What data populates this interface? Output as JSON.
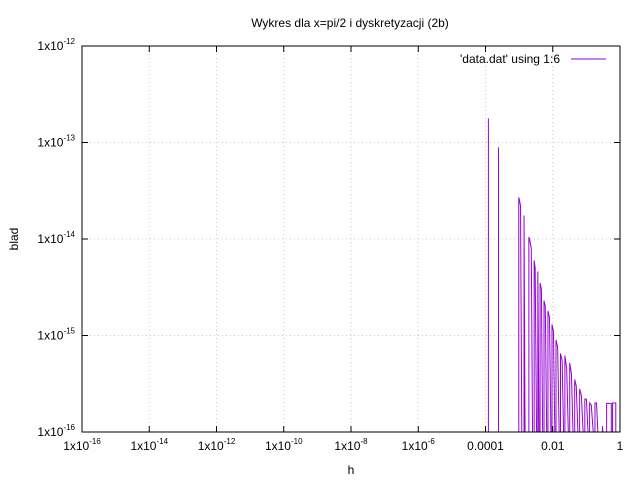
{
  "chart_data": {
    "type": "line",
    "title": "Wykres dla x=pi/2 i dyskretyzacji (2b)",
    "xlabel": "h",
    "ylabel": "blad",
    "xscale": "log",
    "yscale": "log",
    "xlim": [
      1e-16,
      1
    ],
    "ylim": [
      1e-16,
      1e-12
    ],
    "grid": true,
    "legend_position": "top-right",
    "x_ticks": [
      {
        "v": 1e-16,
        "base": "1x10",
        "exp": "-16"
      },
      {
        "v": 1e-14,
        "base": "1x10",
        "exp": "-14"
      },
      {
        "v": 1e-12,
        "base": "1x10",
        "exp": "-12"
      },
      {
        "v": 1e-10,
        "base": "1x10",
        "exp": "-10"
      },
      {
        "v": 1e-08,
        "base": "1x10",
        "exp": "-8"
      },
      {
        "v": 1e-06,
        "base": "1x10",
        "exp": "-6"
      },
      {
        "v": 0.0001,
        "base": "0.0001",
        "exp": ""
      },
      {
        "v": 0.01,
        "base": "0.01",
        "exp": ""
      },
      {
        "v": 1,
        "base": "1",
        "exp": ""
      }
    ],
    "y_ticks": [
      {
        "v": 1e-16,
        "base": "1x10",
        "exp": "-16"
      },
      {
        "v": 1e-15,
        "base": "1x10",
        "exp": "-15"
      },
      {
        "v": 1e-14,
        "base": "1x10",
        "exp": "-14"
      },
      {
        "v": 1e-13,
        "base": "1x10",
        "exp": "-13"
      },
      {
        "v": 1e-12,
        "base": "1x10",
        "exp": "-12"
      }
    ],
    "series": [
      {
        "name": "'data.dat' using 1:6",
        "color": "#9400d3",
        "points": [
          [
            0.000122,
            1e-16
          ],
          [
            0.000122,
            1.78e-13
          ],
          [
            0.000122,
            1e-16
          ],
          [
            0.000244,
            1e-16
          ],
          [
            0.000244,
            8.9e-14
          ],
          [
            0.000244,
            1e-16
          ],
          [
            0.000977,
            1e-16
          ],
          [
            0.000977,
            2.7e-14
          ],
          [
            0.00103,
            2.5e-14
          ],
          [
            0.0011,
            2.2e-14
          ],
          [
            0.0012,
            1e-16
          ],
          [
            0.0014,
            1e-16
          ],
          [
            0.0014,
            1.75e-14
          ],
          [
            0.0015,
            1e-16
          ],
          [
            0.00195,
            1e-16
          ],
          [
            0.00195,
            1.05e-14
          ],
          [
            0.0021,
            9.5e-15
          ],
          [
            0.0023,
            8e-15
          ],
          [
            0.0025,
            1e-16
          ],
          [
            0.0028,
            1e-16
          ],
          [
            0.0028,
            6e-15
          ],
          [
            0.003,
            5e-15
          ],
          [
            0.0033,
            1e-16
          ],
          [
            0.0036,
            1e-16
          ],
          [
            0.0036,
            4.6e-15
          ],
          [
            0.0039,
            1e-16
          ],
          [
            0.0042,
            1e-16
          ],
          [
            0.0042,
            3.5e-15
          ],
          [
            0.0046,
            3e-15
          ],
          [
            0.005,
            1e-16
          ],
          [
            0.0055,
            1e-16
          ],
          [
            0.0055,
            2.3e-15
          ],
          [
            0.006,
            2e-15
          ],
          [
            0.0066,
            1e-16
          ],
          [
            0.0072,
            1e-16
          ],
          [
            0.0072,
            1.8e-15
          ],
          [
            0.008,
            1.55e-15
          ],
          [
            0.0088,
            1e-16
          ],
          [
            0.0095,
            1e-16
          ],
          [
            0.0095,
            1.3e-15
          ],
          [
            0.0105,
            1.1e-15
          ],
          [
            0.0115,
            1e-16
          ],
          [
            0.0125,
            1e-16
          ],
          [
            0.0125,
            9e-16
          ],
          [
            0.014,
            7.5e-16
          ],
          [
            0.0155,
            1e-16
          ],
          [
            0.017,
            1e-16
          ],
          [
            0.017,
            6.5e-16
          ],
          [
            0.019,
            5.5e-16
          ],
          [
            0.021,
            1e-16
          ],
          [
            0.023,
            1e-16
          ],
          [
            0.023,
            6.2e-16
          ],
          [
            0.026,
            4.5e-16
          ],
          [
            0.029,
            1e-16
          ],
          [
            0.032,
            1e-16
          ],
          [
            0.032,
            5.2e-16
          ],
          [
            0.036,
            4e-16
          ],
          [
            0.04,
            1e-16
          ],
          [
            0.045,
            1e-16
          ],
          [
            0.045,
            3.5e-16
          ],
          [
            0.05,
            3e-16
          ],
          [
            0.056,
            1e-16
          ],
          [
            0.063,
            1e-16
          ],
          [
            0.063,
            2.8e-16
          ],
          [
            0.071,
            2.4e-16
          ],
          [
            0.08,
            1e-16
          ],
          [
            0.09,
            1e-16
          ],
          [
            0.09,
            2.2e-16
          ],
          [
            0.1,
            2.2e-16
          ],
          [
            0.112,
            1e-16
          ],
          [
            0.125,
            1e-16
          ],
          [
            0.125,
            2e-16
          ],
          [
            0.14,
            1.9e-16
          ],
          [
            0.16,
            1e-16
          ],
          [
            0.18,
            1e-16
          ],
          [
            0.18,
            2e-16
          ],
          [
            0.2,
            2e-16
          ],
          [
            0.22,
            1e-16
          ],
          [
            0.3,
            1e-16
          ],
          [
            0.3,
            1.15e-16
          ],
          [
            0.31,
            1e-16
          ],
          [
            0.4,
            1e-16
          ],
          [
            0.4,
            1.98e-16
          ],
          [
            0.55,
            1.98e-16
          ],
          [
            0.55,
            1e-16
          ],
          [
            0.6,
            1e-16
          ],
          [
            0.6,
            2e-16
          ],
          [
            0.75,
            2e-16
          ],
          [
            0.75,
            1e-16
          ]
        ]
      }
    ]
  }
}
